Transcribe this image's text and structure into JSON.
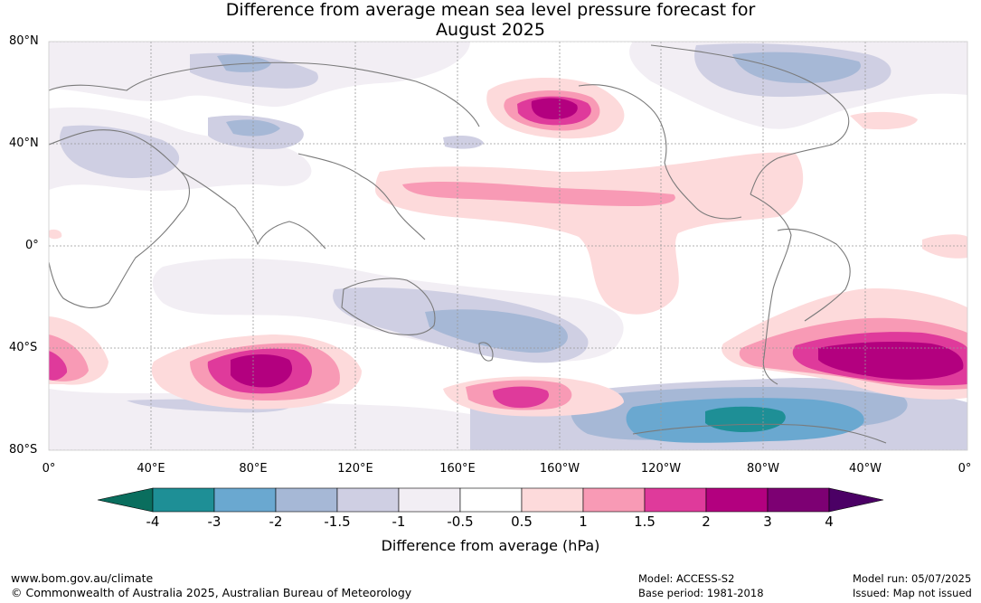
{
  "title": {
    "line1": "Difference from average mean sea level pressure forecast for",
    "line2": "August 2025"
  },
  "axes": {
    "lat_labels": [
      "80°N",
      "40°N",
      "0°",
      "40°S",
      "80°S"
    ],
    "lon_labels": [
      "0°",
      "40°E",
      "80°E",
      "120°E",
      "160°E",
      "160°W",
      "120°W",
      "80°W",
      "40°W",
      "0°"
    ]
  },
  "colorbar": {
    "ticks": [
      "-4",
      "-3",
      "-2",
      "-1.5",
      "-1",
      "-0.5",
      "0.5",
      "1",
      "1.5",
      "2",
      "3",
      "4"
    ],
    "colors": [
      "#0a6e5e",
      "#1e8f96",
      "#6aa8d0",
      "#a6b8d6",
      "#cfcfe3",
      "#f2eef4",
      "#ffffff",
      "#fddadb",
      "#f89ab5",
      "#df3a9b",
      "#b3007f",
      "#7d0073",
      "#4b0065"
    ],
    "label": "Difference from average (hPa)"
  },
  "footer": {
    "website": "www.bom.gov.au/climate",
    "copyright": "© Commonwealth of Australia 2025, Australian Bureau of Meteorology",
    "model": "Model: ACCESS-S2",
    "base_period": "Base period: 1981-2018",
    "model_run": "Model run: 05/07/2025",
    "issued": "Issued: Map not issued"
  }
}
